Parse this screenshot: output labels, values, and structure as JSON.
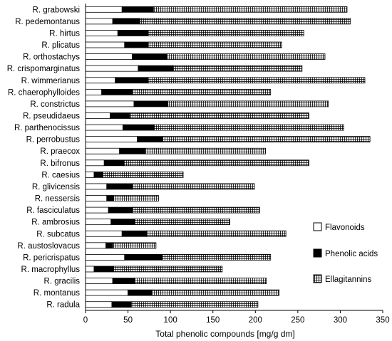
{
  "chart_data": {
    "type": "bar",
    "orientation": "horizontal",
    "stacked": true,
    "xlabel": "Total phenolic compounds [mg/g dm]",
    "ylabel": "",
    "xlim": [
      0,
      350
    ],
    "xticks": [
      "0",
      "50",
      "100",
      "150",
      "200",
      "250",
      "300",
      "350"
    ],
    "grid": false,
    "legend_position": "right",
    "categories": [
      "R. grabowski",
      "R. pedemontanus",
      "R. hirtus",
      "R. plicatus",
      "R. orthostachys",
      "R. crispomarginatus",
      "R. wimmerianus",
      "R. chaerophylloides",
      "R. constrictus",
      "R. pseudidaeus",
      "R. parthenocissus",
      "R. perrobustus",
      "R. praecox",
      "R. bifronus",
      "R. caesius",
      "R. glivicensis",
      "R. nessersis",
      "R. fasciculatus",
      "R. ambrosius",
      "R. subcatus",
      "R. austoslovacus",
      "R. pericrispatus",
      "R. macrophyllus",
      "R. gracilis",
      "R. montanus",
      "R. radula"
    ],
    "series": [
      {
        "name": "Flavonoids",
        "color": "#ffffff",
        "pattern": "solid-white",
        "values": [
          43,
          32,
          38,
          46,
          55,
          62,
          35,
          19,
          57,
          29,
          44,
          61,
          40,
          22,
          10,
          25,
          25,
          27,
          30,
          43,
          24,
          46,
          10,
          32,
          50,
          31
        ]
      },
      {
        "name": "Phenolic acids",
        "color": "#000000",
        "pattern": "solid-black",
        "values": [
          37,
          32,
          36,
          28,
          41,
          41,
          39,
          36,
          40,
          23,
          37,
          30,
          30,
          23,
          10,
          30,
          8,
          28,
          28,
          29,
          8,
          44,
          23,
          26,
          28,
          23
        ]
      },
      {
        "name": "Ellagitannins",
        "color": "#ffffff",
        "pattern": "grid-hatch",
        "values": [
          228,
          248,
          183,
          157,
          186,
          152,
          255,
          163,
          189,
          211,
          223,
          244,
          142,
          218,
          95,
          144,
          53,
          150,
          112,
          164,
          51,
          128,
          128,
          155,
          150,
          149
        ]
      }
    ]
  }
}
